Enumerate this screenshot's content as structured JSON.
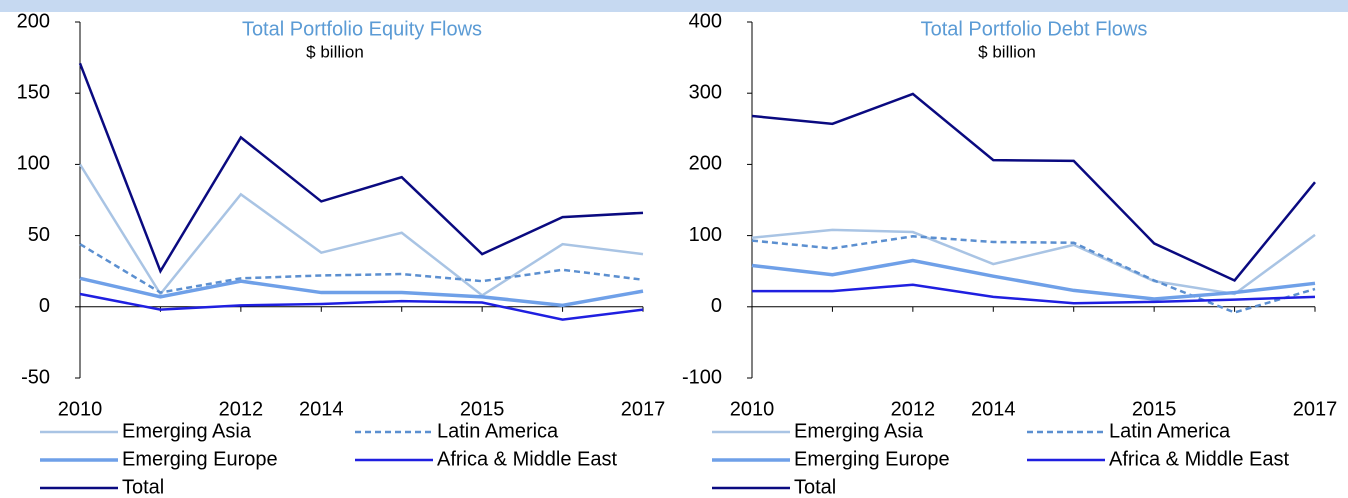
{
  "chart_data": [
    {
      "type": "line",
      "title": "Total Portfolio Equity Flows",
      "subtitle": "$ billion",
      "categories": [
        "2010",
        null,
        "2012",
        "2014",
        null,
        "2015",
        null,
        "2017"
      ],
      "ylim": [
        -50,
        200
      ],
      "yticks": [
        -50,
        0,
        50,
        100,
        150,
        200
      ],
      "series": [
        {
          "name": "Emerging Asia",
          "color": "#a9c4e4",
          "dash": false,
          "values": [
            100,
            9,
            79,
            38,
            52,
            8,
            44,
            37
          ]
        },
        {
          "name": "Latin America",
          "color": "#5b8fd0",
          "dash": true,
          "values": [
            44,
            10,
            20,
            22,
            23,
            18,
            26,
            19
          ]
        },
        {
          "name": "Emerging Europe",
          "color": "#6fa0e8",
          "dash": false,
          "values": [
            20,
            7,
            18,
            10,
            10,
            7,
            1,
            11
          ]
        },
        {
          "name": "Africa & Middle East",
          "color": "#1f1fe0",
          "dash": false,
          "values": [
            9,
            -2,
            1,
            2,
            4,
            3,
            -9,
            -2
          ]
        },
        {
          "name": "Total",
          "color": "#0a0a80",
          "dash": false,
          "values": [
            171,
            25,
            119,
            74,
            91,
            37,
            63,
            66
          ]
        }
      ]
    },
    {
      "type": "line",
      "title": "Total Portfolio Debt Flows",
      "subtitle": "$ billion",
      "categories": [
        "2010",
        null,
        "2012",
        "2014",
        null,
        "2015",
        null,
        "2017"
      ],
      "ylim": [
        -100,
        400
      ],
      "yticks": [
        -100,
        0,
        100,
        200,
        300,
        400
      ],
      "series": [
        {
          "name": "Emerging Asia",
          "color": "#a9c4e4",
          "dash": false,
          "values": [
            97,
            108,
            105,
            60,
            87,
            36,
            18,
            101
          ]
        },
        {
          "name": "Latin America",
          "color": "#5b8fd0",
          "dash": true,
          "values": [
            93,
            82,
            99,
            91,
            90,
            37,
            -8,
            25
          ]
        },
        {
          "name": "Emerging Europe",
          "color": "#6fa0e8",
          "dash": false,
          "values": [
            58,
            45,
            65,
            43,
            23,
            11,
            20,
            33
          ]
        },
        {
          "name": "Africa & Middle East",
          "color": "#1f1fe0",
          "dash": false,
          "values": [
            22,
            22,
            31,
            14,
            5,
            7,
            10,
            14
          ]
        },
        {
          "name": "Total",
          "color": "#0a0a80",
          "dash": false,
          "values": [
            268,
            257,
            299,
            206,
            205,
            89,
            37,
            175
          ]
        }
      ]
    }
  ]
}
